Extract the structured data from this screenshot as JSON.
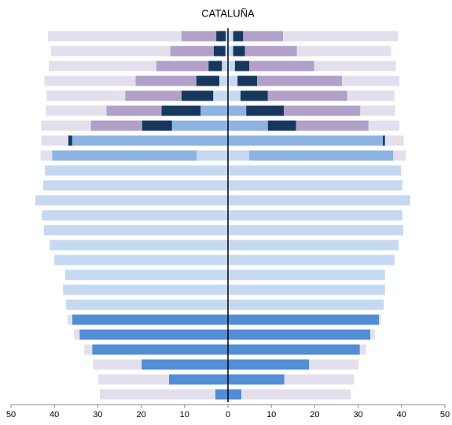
{
  "chart_data": {
    "type": "pyramid",
    "title": "CATALUÑA",
    "categories": [
      null,
      null,
      null,
      null,
      null,
      null,
      null,
      null,
      null,
      null,
      null,
      null,
      null,
      null,
      null,
      null,
      null,
      null,
      null,
      null,
      null,
      null,
      null,
      null,
      null
    ],
    "xlim": [
      0,
      50
    ],
    "xticks": [
      0,
      10,
      20,
      30,
      40,
      50
    ],
    "series": [
      {
        "color": "#c5d9f1",
        "left": [
          0.5,
          0.6,
          1.4,
          2,
          3.4,
          0,
          0,
          0,
          7.2,
          42.2,
          42.6,
          44.4,
          42.9,
          42.4,
          41.1,
          40,
          37.5,
          38,
          37.3,
          0,
          0,
          0,
          0,
          0,
          0
        ],
        "right": [
          1.2,
          1.2,
          1.6,
          2.2,
          2.9,
          0,
          0,
          0,
          4.9,
          39.9,
          40.2,
          42,
          40.2,
          40.4,
          39.3,
          38.4,
          36.2,
          36.2,
          35.9,
          0,
          0,
          0,
          0,
          0,
          0
        ]
      },
      {
        "color": "#8db3e2",
        "left": [
          0,
          0,
          0,
          0,
          0,
          6.3,
          12.9,
          35.9,
          33.3,
          0,
          0,
          0,
          0,
          0,
          0,
          0,
          0,
          0,
          0,
          0,
          0,
          0,
          0,
          0,
          0
        ],
        "right": [
          0,
          0,
          0,
          0,
          0,
          4.2,
          9.2,
          35.7,
          33.2,
          0,
          0,
          0,
          0,
          0,
          0,
          0,
          0,
          0,
          0,
          0,
          0,
          0,
          0,
          0,
          0
        ]
      },
      {
        "color": "#538dd5",
        "left": [
          0,
          0,
          0,
          0,
          0,
          0,
          0,
          0,
          0,
          0,
          0,
          0,
          0,
          0,
          0,
          0,
          0,
          0,
          0,
          35.9,
          34.2,
          31.3,
          19.9,
          13.6,
          2.9
        ],
        "right": [
          0,
          0,
          0,
          0,
          0,
          0,
          0,
          0,
          0,
          0,
          0,
          0,
          0,
          0,
          0,
          0,
          0,
          0,
          0,
          34.8,
          32.8,
          30.4,
          18.7,
          13,
          3.1
        ]
      },
      {
        "color": "#17375e",
        "left": [
          2.2,
          2.7,
          3.1,
          5.3,
          7.3,
          9,
          6.9,
          0.9,
          0,
          0,
          0,
          0,
          0,
          0,
          0,
          0,
          0,
          0,
          0,
          0,
          0,
          0,
          0,
          0,
          0
        ],
        "right": [
          2.3,
          2.7,
          3.3,
          4.5,
          6.3,
          8.7,
          6.5,
          0.5,
          0,
          0,
          0,
          0,
          0,
          0,
          0,
          0,
          0,
          0,
          0,
          0,
          0,
          0,
          0,
          0,
          0
        ]
      },
      {
        "color": "#b1a0c7",
        "left": [
          8,
          10,
          12,
          14,
          13,
          12.7,
          11.8,
          0,
          0,
          0,
          0,
          0,
          0,
          0,
          0,
          0,
          0,
          0,
          0,
          0,
          0,
          0,
          0,
          0,
          0
        ],
        "right": [
          9.2,
          12,
          15,
          19.6,
          18.3,
          17.6,
          16.7,
          0,
          0,
          0,
          0,
          0,
          0,
          0,
          0,
          0,
          0,
          0,
          0,
          0,
          0,
          0,
          0,
          0,
          0
        ]
      },
      {
        "color": "#e4dfec",
        "left": [
          30.8,
          27.5,
          24.8,
          21,
          18.1,
          14,
          11.4,
          6.2,
          2.7,
          0,
          0,
          0,
          0,
          0,
          0,
          0,
          0,
          0,
          0,
          1.1,
          1.3,
          1.8,
          11.2,
          16.3,
          26.6
        ],
        "right": [
          26.5,
          21.7,
          18.8,
          13.2,
          10.9,
          8,
          7.1,
          4.3,
          2.9,
          0,
          0,
          0,
          0,
          0,
          0,
          0,
          0,
          0,
          0,
          0.5,
          1.1,
          1.4,
          11.4,
          16.1,
          25.2
        ]
      }
    ]
  }
}
